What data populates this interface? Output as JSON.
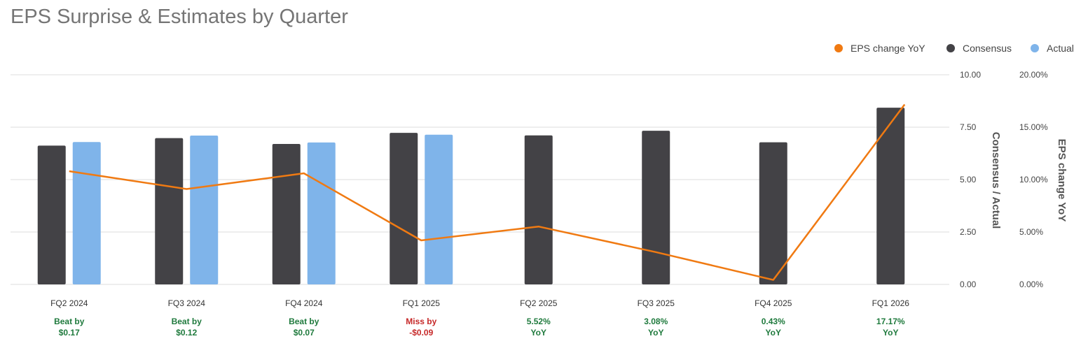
{
  "title": "EPS Surprise & Estimates by Quarter",
  "colors": {
    "consensus": "#434246",
    "actual": "#7fb4ea",
    "eps_change": "#f07a12",
    "beat": "#1f7a3d",
    "miss": "#c62828",
    "grid": "#dddddd"
  },
  "chart_data": {
    "type": "bar",
    "categories": [
      "FQ2 2024",
      "FQ3 2024",
      "FQ4 2024",
      "FQ1 2025",
      "FQ2 2025",
      "FQ3 2025",
      "FQ4 2025",
      "FQ1 2026"
    ],
    "series": [
      {
        "name": "Consensus",
        "type": "bar",
        "axis": "left",
        "color": "#434246",
        "values": [
          6.62,
          6.98,
          6.7,
          7.23,
          7.11,
          7.33,
          6.78,
          8.43
        ]
      },
      {
        "name": "Actual",
        "type": "bar",
        "axis": "left",
        "color": "#7fb4ea",
        "values": [
          6.79,
          7.1,
          6.77,
          7.14,
          null,
          null,
          null,
          null
        ]
      },
      {
        "name": "EPS change YoY",
        "type": "line",
        "axis": "right",
        "color": "#f07a12",
        "values": [
          10.8,
          9.1,
          10.6,
          4.2,
          5.52,
          3.08,
          0.43,
          17.17
        ]
      }
    ],
    "y_left": {
      "label": "Consensus / Actual",
      "range": [
        0,
        10
      ],
      "ticks": [
        "0.00",
        "2.50",
        "5.00",
        "7.50",
        "10.00"
      ]
    },
    "y_right": {
      "label": "EPS change YoY",
      "range": [
        0,
        20
      ],
      "ticks": [
        "0.00%",
        "5.00%",
        "10.00%",
        "15.00%",
        "20.00%"
      ]
    },
    "legend": {
      "position": "top-right",
      "entries": [
        {
          "label": "EPS change YoY",
          "color": "#f07a12"
        },
        {
          "label": "Consensus",
          "color": "#434246"
        },
        {
          "label": "Actual",
          "color": "#7fb4ea"
        }
      ]
    },
    "annotations": [
      {
        "line1": "Beat by",
        "line2": "$0.17",
        "status": "beat"
      },
      {
        "line1": "Beat by",
        "line2": "$0.12",
        "status": "beat"
      },
      {
        "line1": "Beat by",
        "line2": "$0.07",
        "status": "beat"
      },
      {
        "line1": "Miss by",
        "line2": "-$0.09",
        "status": "miss"
      },
      {
        "line1": "5.52%",
        "line2": "YoY",
        "status": "beat"
      },
      {
        "line1": "3.08%",
        "line2": "YoY",
        "status": "beat"
      },
      {
        "line1": "0.43%",
        "line2": "YoY",
        "status": "beat"
      },
      {
        "line1": "17.17%",
        "line2": "YoY",
        "status": "beat"
      }
    ],
    "grid": true
  }
}
